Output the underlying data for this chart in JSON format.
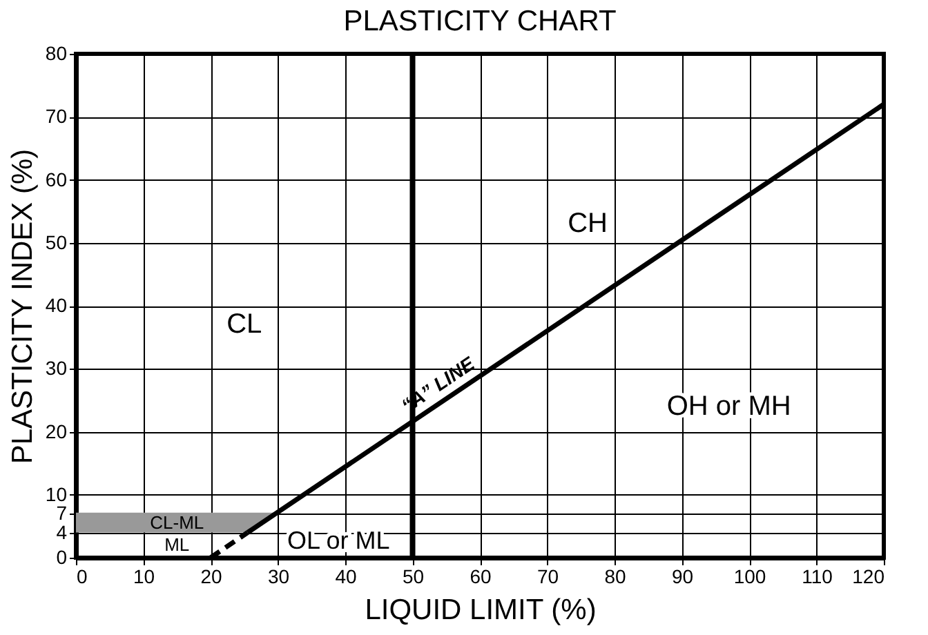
{
  "chart_data": {
    "type": "line",
    "title": "PLASTICITY CHART",
    "xlabel": "LIQUID LIMIT (%)",
    "ylabel": "PLASTICITY INDEX (%)",
    "xlim": [
      0,
      120
    ],
    "ylim": [
      0,
      80
    ],
    "xticks": [
      0,
      10,
      20,
      30,
      40,
      50,
      60,
      70,
      80,
      90,
      100,
      110,
      120
    ],
    "yticks": [
      0,
      4,
      7,
      10,
      20,
      30,
      40,
      50,
      60,
      70,
      80
    ],
    "grid": true,
    "marker": "none",
    "series": [
      {
        "color": "#999999",
        "x": [
          0,
          25.5,
          29.6
        ],
        "values": [
          7,
          7,
          7
        ],
        "lower": [
          4,
          4,
          7
        ],
        "upper": [
          7,
          7,
          7
        ]
      },
      {
        "color": "#000000",
        "line_style": "dashed",
        "x": [
          20,
          25.5
        ],
        "values": [
          0,
          4
        ]
      },
      {
        "color": "#000000",
        "line_style": "solid",
        "x": [
          25.5,
          120
        ],
        "values": [
          4,
          72
        ]
      }
    ],
    "ref_lines": [
      {
        "axis": "x",
        "value": 50,
        "color": "#000000"
      }
    ],
    "annotations": [
      "CL",
      "CH",
      "OH or MH",
      "OL or ML",
      "CL-ML",
      "ML",
      {
        "text": "“A” LINE",
        "x": 55,
        "y": 25.5
      }
    ]
  }
}
